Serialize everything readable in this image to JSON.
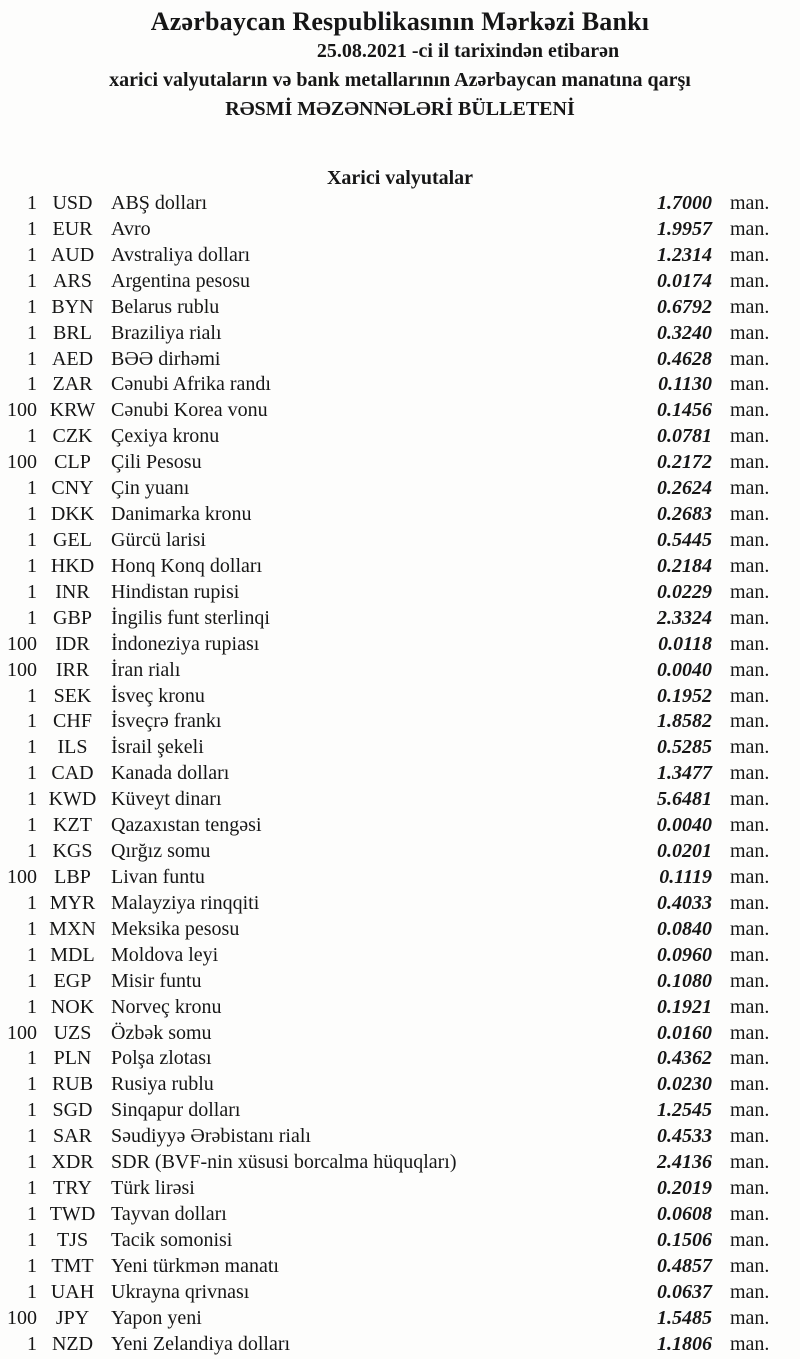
{
  "header": {
    "bank_name": "Azərbaycan Respublikasının Mərkəzi Bankı",
    "date_line": "25.08.2021 -ci il tarixindən etibarən",
    "subject_line": "xarici valyutaların və bank metallarının Azərbaycan manatına qarşı",
    "bulletin_title": "RƏSMİ MƏZƏNNƏLƏRİ BÜLLETENİ"
  },
  "section": {
    "title": "Xarici valyutalar"
  },
  "unit_suffix": "man.",
  "colors": {
    "text": "#161616",
    "background": "#fdfdfc"
  },
  "rates": [
    {
      "qty": "1",
      "code": "USD",
      "name": "ABŞ dolları",
      "rate": "1.7000"
    },
    {
      "qty": "1",
      "code": "EUR",
      "name": "Avro",
      "rate": "1.9957"
    },
    {
      "qty": "1",
      "code": "AUD",
      "name": "Avstraliya dolları",
      "rate": "1.2314"
    },
    {
      "qty": "1",
      "code": "ARS",
      "name": "Argentina pesosu",
      "rate": "0.0174"
    },
    {
      "qty": "1",
      "code": "BYN",
      "name": "Belarus rublu",
      "rate": "0.6792"
    },
    {
      "qty": "1",
      "code": "BRL",
      "name": "Braziliya rialı",
      "rate": "0.3240"
    },
    {
      "qty": "1",
      "code": "AED",
      "name": "BƏƏ dirhəmi",
      "rate": "0.4628"
    },
    {
      "qty": "1",
      "code": "ZAR",
      "name": "Cənubi Afrika randı",
      "rate": "0.1130"
    },
    {
      "qty": "100",
      "code": "KRW",
      "name": "Cənubi Korea vonu",
      "rate": "0.1456"
    },
    {
      "qty": "1",
      "code": "CZK",
      "name": "Çexiya kronu",
      "rate": "0.0781"
    },
    {
      "qty": "100",
      "code": "CLP",
      "name": "Çili Pesosu",
      "rate": "0.2172"
    },
    {
      "qty": "1",
      "code": "CNY",
      "name": "Çin yuanı",
      "rate": "0.2624"
    },
    {
      "qty": "1",
      "code": "DKK",
      "name": "Danimarka kronu",
      "rate": "0.2683"
    },
    {
      "qty": "1",
      "code": "GEL",
      "name": "Gürcü larisi",
      "rate": "0.5445"
    },
    {
      "qty": "1",
      "code": "HKD",
      "name": "Honq Konq dolları",
      "rate": "0.2184"
    },
    {
      "qty": "1",
      "code": "INR",
      "name": "Hindistan rupisi",
      "rate": "0.0229"
    },
    {
      "qty": "1",
      "code": "GBP",
      "name": "İngilis funt sterlinqi",
      "rate": "2.3324"
    },
    {
      "qty": "100",
      "code": "IDR",
      "name": "İndoneziya rupiası",
      "rate": "0.0118"
    },
    {
      "qty": "100",
      "code": "IRR",
      "name": "İran rialı",
      "rate": "0.0040"
    },
    {
      "qty": "1",
      "code": "SEK",
      "name": "İsveç kronu",
      "rate": "0.1952"
    },
    {
      "qty": "1",
      "code": "CHF",
      "name": "İsveçrə frankı",
      "rate": "1.8582"
    },
    {
      "qty": "1",
      "code": "ILS",
      "name": "İsrail şekeli",
      "rate": "0.5285"
    },
    {
      "qty": "1",
      "code": "CAD",
      "name": "Kanada dolları",
      "rate": "1.3477"
    },
    {
      "qty": "1",
      "code": "KWD",
      "name": "Küveyt dinarı",
      "rate": "5.6481"
    },
    {
      "qty": "1",
      "code": "KZT",
      "name": "Qazaxıstan tengəsi",
      "rate": "0.0040"
    },
    {
      "qty": "1",
      "code": "KGS",
      "name": "Qırğız somu",
      "rate": "0.0201"
    },
    {
      "qty": "100",
      "code": "LBP",
      "name": "Livan funtu",
      "rate": "0.1119"
    },
    {
      "qty": "1",
      "code": "MYR",
      "name": "Malayziya rinqqiti",
      "rate": "0.4033"
    },
    {
      "qty": "1",
      "code": "MXN",
      "name": "Meksika pesosu",
      "rate": "0.0840"
    },
    {
      "qty": "1",
      "code": "MDL",
      "name": "Moldova leyi",
      "rate": "0.0960"
    },
    {
      "qty": "1",
      "code": "EGP",
      "name": "Misir funtu",
      "rate": "0.1080"
    },
    {
      "qty": "1",
      "code": "NOK",
      "name": "Norveç kronu",
      "rate": "0.1921"
    },
    {
      "qty": "100",
      "code": "UZS",
      "name": "Özbək somu",
      "rate": "0.0160"
    },
    {
      "qty": "1",
      "code": "PLN",
      "name": "Polşa zlotası",
      "rate": "0.4362"
    },
    {
      "qty": "1",
      "code": "RUB",
      "name": "Rusiya rublu",
      "rate": "0.0230"
    },
    {
      "qty": "1",
      "code": "SGD",
      "name": "Sinqapur dolları",
      "rate": "1.2545"
    },
    {
      "qty": "1",
      "code": "SAR",
      "name": "Səudiyyə Ərəbistanı rialı",
      "rate": "0.4533"
    },
    {
      "qty": "1",
      "code": "XDR",
      "name": "SDR (BVF-nin xüsusi borcalma hüquqları)",
      "rate": "2.4136"
    },
    {
      "qty": "1",
      "code": "TRY",
      "name": "Türk lirəsi",
      "rate": "0.2019"
    },
    {
      "qty": "1",
      "code": "TWD",
      "name": "Tayvan dolları",
      "rate": "0.0608"
    },
    {
      "qty": "1",
      "code": "TJS",
      "name": "Tacik somonisi",
      "rate": "0.1506"
    },
    {
      "qty": "1",
      "code": "TMT",
      "name": "Yeni türkmən manatı",
      "rate": "0.4857"
    },
    {
      "qty": "1",
      "code": "UAH",
      "name": "Ukrayna qrivnası",
      "rate": "0.0637"
    },
    {
      "qty": "100",
      "code": "JPY",
      "name": "Yapon yeni",
      "rate": "1.5485"
    },
    {
      "qty": "1",
      "code": "NZD",
      "name": "Yeni Zelandiya dolları",
      "rate": "1.1806"
    }
  ]
}
